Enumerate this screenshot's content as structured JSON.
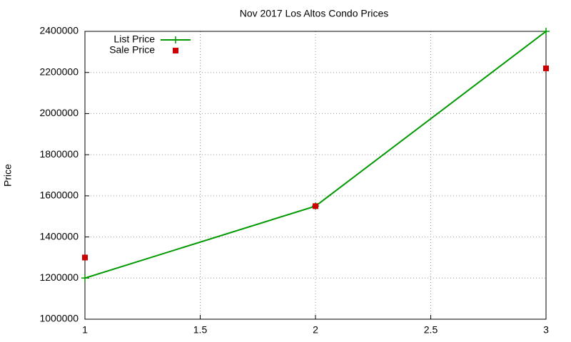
{
  "chart_data": {
    "type": "line",
    "title": "Nov 2017 Los Altos Condo Prices",
    "y_label": "Price",
    "x": [
      1,
      2,
      3
    ],
    "series": [
      {
        "name": "List Price",
        "color": "#009900",
        "mode": "lines+markers",
        "values": [
          1200000,
          1550000,
          2400000
        ]
      },
      {
        "name": "Sale Price",
        "color": "#cc0000",
        "mode": "markers",
        "values": [
          1300000,
          1550000,
          2220000
        ]
      }
    ],
    "xlim": [
      1,
      3
    ],
    "xticks": [
      1,
      1.5,
      2,
      2.5,
      3
    ],
    "ylim": [
      1000000,
      2400000
    ],
    "yticks": [
      1000000,
      1200000,
      1400000,
      1600000,
      1800000,
      2000000,
      2200000,
      2400000
    ],
    "grid": true,
    "legend": "top-left"
  }
}
